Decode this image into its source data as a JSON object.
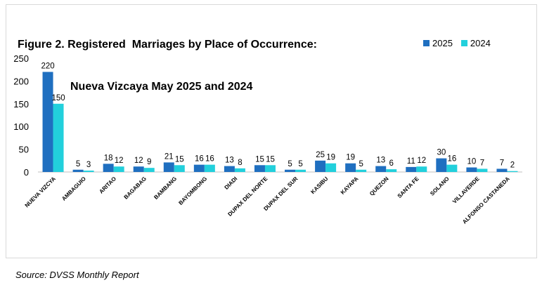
{
  "title": {
    "line1": "Figure 2. Registered  Marriages by Place of Occurrence:",
    "line2": "Nueva Vizcaya May 2025 and 2024"
  },
  "source": "Source: DVSS Monthly Report",
  "colors": {
    "s2025": "#1f6fc0",
    "s2024": "#22d0dc"
  },
  "chart_data": {
    "type": "bar",
    "title": "Figure 2. Registered  Marriages by Place of Occurrence: Nueva Vizcaya May 2025 and 2024",
    "categories": [
      "NUEVA VIZCYA",
      "AMBAGUIO",
      "ARITAO",
      "BAGABAG",
      "BAMBANG",
      "BAYOMBONG",
      "DIADI",
      "DUPAX DEL NORTE",
      "DUPAX DEL SUR",
      "KASIBU",
      "KAYAPA",
      "QUEZON",
      "SANTA FE",
      "SOLANO",
      "VILLAVERDE",
      "ALFONSO CASTANEDA"
    ],
    "series": [
      {
        "name": "2025",
        "values": [
          220,
          5,
          18,
          12,
          21,
          16,
          13,
          15,
          5,
          25,
          19,
          13,
          11,
          30,
          10,
          7
        ]
      },
      {
        "name": "2024",
        "values": [
          150,
          3,
          12,
          9,
          15,
          16,
          8,
          15,
          5,
          19,
          5,
          6,
          12,
          16,
          7,
          2
        ]
      }
    ],
    "yticks": [
      0,
      50,
      100,
      150,
      200,
      250
    ],
    "ylim": [
      0,
      250
    ],
    "xlabel": "",
    "ylabel": "",
    "legend": "top-right",
    "grid": false,
    "data_labels": true
  }
}
